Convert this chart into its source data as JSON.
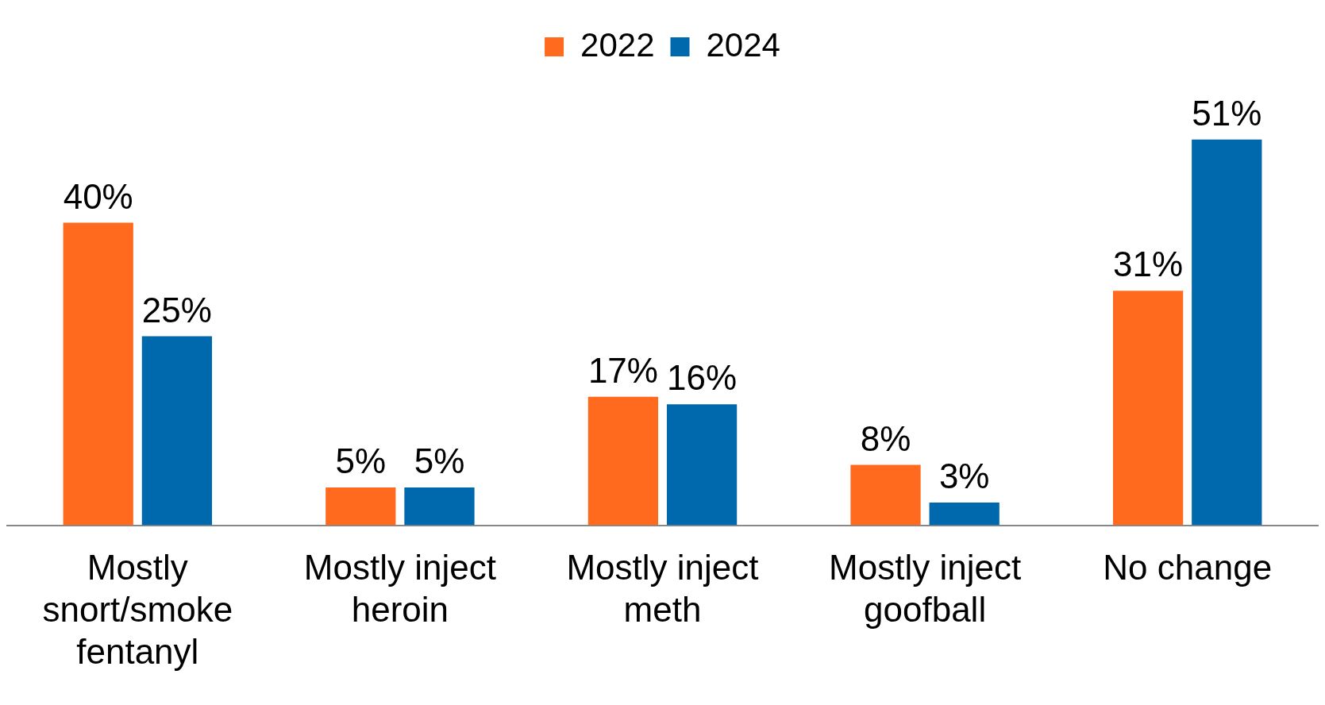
{
  "chart_data": {
    "type": "bar",
    "categories": [
      "Mostly snort/smoke fentanyl",
      "Mostly inject heroin",
      "Mostly inject meth",
      "Mostly inject goofball",
      "No change"
    ],
    "series": [
      {
        "name": "2022",
        "color": "#ff6a1f",
        "values": [
          40,
          5,
          17,
          8,
          31
        ],
        "value_labels": [
          "40%",
          "5%",
          "17%",
          "8%",
          "31%"
        ]
      },
      {
        "name": "2024",
        "color": "#0068ad",
        "values": [
          25,
          5,
          16,
          3,
          51
        ],
        "value_labels": [
          "25%",
          "5%",
          "16%",
          "3%",
          "51%"
        ]
      }
    ],
    "legend": "top",
    "grid": false
  }
}
